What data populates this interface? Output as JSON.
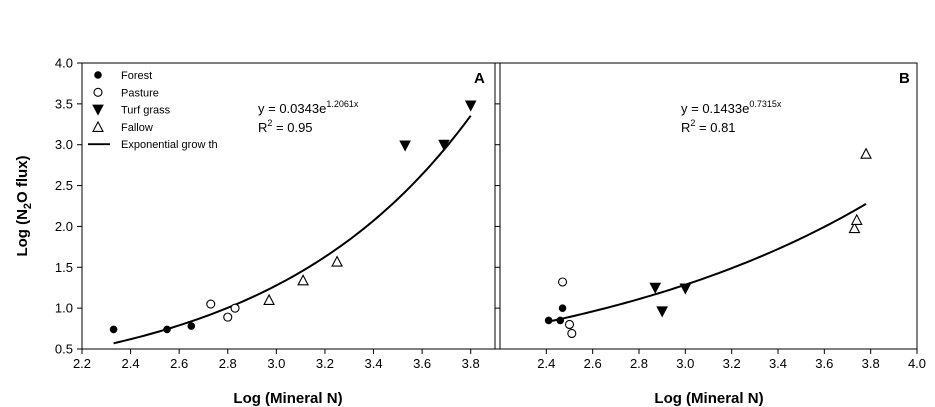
{
  "chart_data": [
    {
      "type": "scatter",
      "panel_label": "A",
      "xlabel": "Log (Mineral N)",
      "ylabel_main": "Log (N",
      "ylabel_sub": "2",
      "ylabel_tail": "O flux)",
      "xlim": [
        2.2,
        3.9
      ],
      "ylim": [
        0.5,
        4.0
      ],
      "xticks": [
        2.2,
        2.4,
        2.6,
        2.8,
        3.0,
        3.2,
        3.4,
        3.6,
        3.8
      ],
      "yticks": [
        0.5,
        1.0,
        1.5,
        2.0,
        2.5,
        3.0,
        3.5,
        4.0
      ],
      "equation": {
        "lead": "y = 0.0343e",
        "exponent": "1.2061x",
        "r2_lead": "R",
        "r2_sup": "2",
        "r2_tail": " = 0.95"
      },
      "fit": {
        "a": 0.0343,
        "b": 1.2061,
        "x_start": 2.33,
        "x_end": 3.8
      },
      "legend": {
        "placement": "top-left",
        "items": [
          {
            "label": "Forest",
            "marker": "filled-circle"
          },
          {
            "label": "Pasture",
            "marker": "open-circle"
          },
          {
            "label": "Turf grass",
            "marker": "filled-triangle-down"
          },
          {
            "label": "Fallow",
            "marker": "open-triangle-up"
          },
          {
            "label": "Exponential grow th",
            "marker": "line"
          }
        ]
      },
      "series": [
        {
          "name": "Forest",
          "marker": "filled-circle",
          "points": [
            [
              2.33,
              0.74
            ],
            [
              2.55,
              0.74
            ],
            [
              2.65,
              0.78
            ]
          ]
        },
        {
          "name": "Pasture",
          "marker": "open-circle",
          "points": [
            [
              2.73,
              1.05
            ],
            [
              2.8,
              0.89
            ],
            [
              2.83,
              1.0
            ]
          ]
        },
        {
          "name": "Turf grass",
          "marker": "filled-triangle-down",
          "points": [
            [
              3.53,
              2.99
            ],
            [
              3.69,
              3.0
            ],
            [
              3.8,
              3.48
            ]
          ]
        },
        {
          "name": "Fallow",
          "marker": "open-triangle-up",
          "points": [
            [
              2.97,
              1.1
            ],
            [
              3.11,
              1.34
            ],
            [
              3.25,
              1.57
            ]
          ]
        }
      ]
    },
    {
      "type": "scatter",
      "panel_label": "B",
      "xlabel": "Log (Mineral N)",
      "xlim": [
        2.2,
        4.0
      ],
      "ylim": [
        0.5,
        4.0
      ],
      "xticks": [
        2.4,
        2.6,
        2.8,
        3.0,
        3.2,
        3.4,
        3.6,
        3.8,
        4.0
      ],
      "equation": {
        "lead": "y = 0.1433e",
        "exponent": "0.7315x",
        "r2_lead": "R",
        "r2_sup": "2",
        "r2_tail": " = 0.81"
      },
      "fit": {
        "a": 0.1433,
        "b": 0.7315,
        "x_start": 2.4,
        "x_end": 3.78
      },
      "series": [
        {
          "name": "Forest",
          "marker": "filled-circle",
          "points": [
            [
              2.41,
              0.85
            ],
            [
              2.46,
              0.85
            ],
            [
              2.47,
              1.0
            ]
          ]
        },
        {
          "name": "Pasture",
          "marker": "open-circle",
          "points": [
            [
              2.47,
              1.32
            ],
            [
              2.5,
              0.8
            ],
            [
              2.51,
              0.69
            ]
          ]
        },
        {
          "name": "Turf grass",
          "marker": "filled-triangle-down",
          "points": [
            [
              2.87,
              1.25
            ],
            [
              2.9,
              0.96
            ],
            [
              3.0,
              1.24
            ]
          ]
        },
        {
          "name": "Fallow",
          "marker": "open-triangle-up",
          "points": [
            [
              3.73,
              1.98
            ],
            [
              3.74,
              2.08
            ],
            [
              3.78,
              2.89
            ]
          ]
        }
      ]
    }
  ]
}
